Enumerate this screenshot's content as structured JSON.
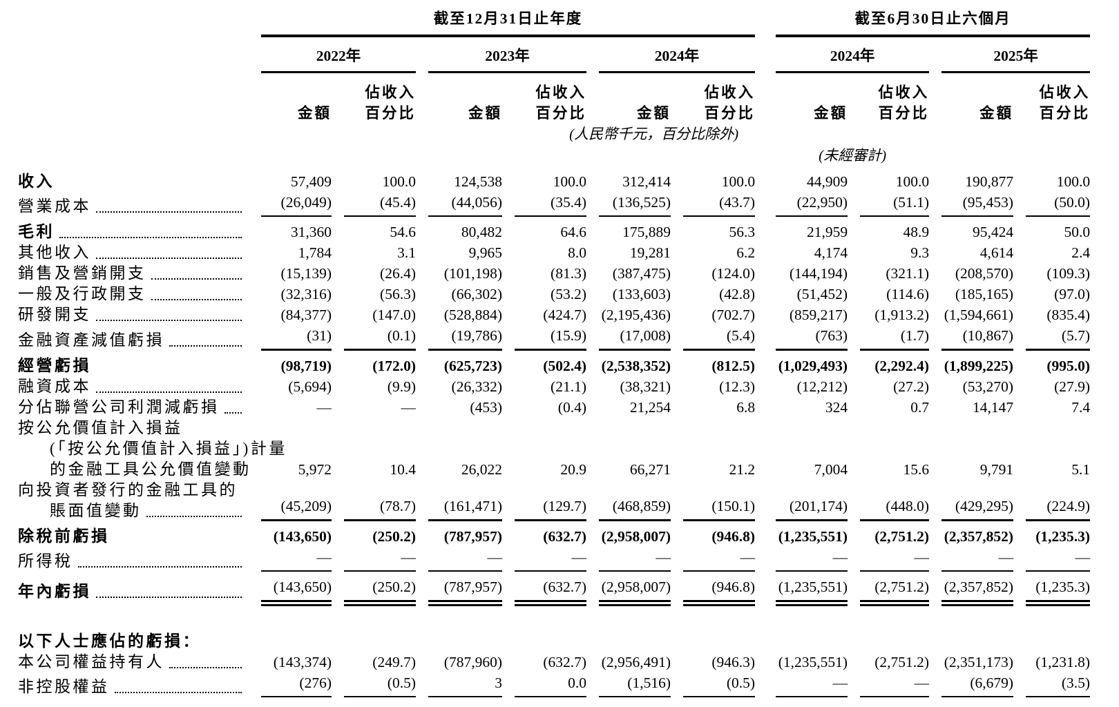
{
  "table": {
    "group_headers": [
      {
        "label": "截至12月31日止年度"
      },
      {
        "label": "截至6月30日止六個月"
      }
    ],
    "year_headers": [
      "2022年",
      "2023年",
      "2024年",
      "2024年",
      "2025年"
    ],
    "col_headers": {
      "amount": "金額",
      "pct_line1": "佔收入",
      "pct_line2": "百分比"
    },
    "unit_note": "(人民幣千元，百分比除外)",
    "unaudited_note": "(未經審計)",
    "rows": [
      {
        "label_lines": [
          {
            "text": "收入",
            "indent": 0
          }
        ],
        "bold_label": true,
        "dots": false,
        "values": [
          "57,409",
          "100.0",
          "124,538",
          "100.0",
          "312,414",
          "100.0",
          "44,909",
          "100.0",
          "190,877",
          "100.0"
        ],
        "bold_values": false,
        "rule": null,
        "first": true
      },
      {
        "label_lines": [
          {
            "text": "營業成本",
            "indent": 0
          }
        ],
        "bold_label": false,
        "dots": true,
        "values": [
          "(26,049)",
          "(45.4)",
          "(44,056)",
          "(35.4)",
          "(136,525)",
          "(43.7)",
          "(22,950)",
          "(51.1)",
          "(95,453)",
          "(50.0)"
        ],
        "bold_values": false,
        "rule": "single"
      },
      {
        "label_lines": [
          {
            "text": "毛利",
            "indent": 0
          }
        ],
        "bold_label": true,
        "dots": true,
        "values": [
          "31,360",
          "54.6",
          "80,482",
          "64.6",
          "175,889",
          "56.3",
          "21,959",
          "48.9",
          "95,424",
          "50.0"
        ],
        "bold_values": false,
        "rule": null
      },
      {
        "label_lines": [
          {
            "text": "其他收入",
            "indent": 0
          }
        ],
        "bold_label": false,
        "dots": true,
        "values": [
          "1,784",
          "3.1",
          "9,965",
          "8.0",
          "19,281",
          "6.2",
          "4,174",
          "9.3",
          "4,614",
          "2.4"
        ],
        "bold_values": false,
        "rule": null
      },
      {
        "label_lines": [
          {
            "text": "銷售及營銷開支",
            "indent": 0
          }
        ],
        "bold_label": false,
        "dots": true,
        "values": [
          "(15,139)",
          "(26.4)",
          "(101,198)",
          "(81.3)",
          "(387,475)",
          "(124.0)",
          "(144,194)",
          "(321.1)",
          "(208,570)",
          "(109.3)"
        ],
        "bold_values": false,
        "rule": null
      },
      {
        "label_lines": [
          {
            "text": "一般及行政開支",
            "indent": 0
          }
        ],
        "bold_label": false,
        "dots": true,
        "values": [
          "(32,316)",
          "(56.3)",
          "(66,302)",
          "(53.2)",
          "(133,603)",
          "(42.8)",
          "(51,452)",
          "(114.6)",
          "(185,165)",
          "(97.0)"
        ],
        "bold_values": false,
        "rule": null
      },
      {
        "label_lines": [
          {
            "text": "研發開支",
            "indent": 0
          }
        ],
        "bold_label": false,
        "dots": true,
        "values": [
          "(84,377)",
          "(147.0)",
          "(528,884)",
          "(424.7)",
          "(2,195,436)",
          "(702.7)",
          "(859,217)",
          "(1,913.2)",
          "(1,594,661)",
          "(835.4)"
        ],
        "bold_values": false,
        "rule": null
      },
      {
        "label_lines": [
          {
            "text": "金融資產減值虧損",
            "indent": 0
          }
        ],
        "bold_label": false,
        "dots": true,
        "values": [
          "(31)",
          "(0.1)",
          "(19,786)",
          "(15.9)",
          "(17,008)",
          "(5.4)",
          "(763)",
          "(1.7)",
          "(10,867)",
          "(5.7)"
        ],
        "bold_values": false,
        "rule": "single"
      },
      {
        "label_lines": [
          {
            "text": "經營虧損",
            "indent": 0
          }
        ],
        "bold_label": true,
        "dots": false,
        "values": [
          "(98,719)",
          "(172.0)",
          "(625,723)",
          "(502.4)",
          "(2,538,352)",
          "(812.5)",
          "(1,029,493)",
          "(2,292.4)",
          "(1,899,225)",
          "(995.0)"
        ],
        "bold_values": true,
        "rule": null
      },
      {
        "label_lines": [
          {
            "text": "融資成本",
            "indent": 0
          }
        ],
        "bold_label": false,
        "dots": true,
        "values": [
          "(5,694)",
          "(9.9)",
          "(26,332)",
          "(21.1)",
          "(38,321)",
          "(12.3)",
          "(12,212)",
          "(27.2)",
          "(53,270)",
          "(27.9)"
        ],
        "bold_values": false,
        "rule": null
      },
      {
        "label_lines": [
          {
            "text": "分佔聯營公司利潤減虧損",
            "indent": 0
          }
        ],
        "bold_label": false,
        "dots": true,
        "values": [
          "—",
          "—",
          "(453)",
          "(0.4)",
          "21,254",
          "6.8",
          "324",
          "0.7",
          "14,147",
          "7.4"
        ],
        "bold_values": false,
        "rule": null
      },
      {
        "label_lines": [
          {
            "text": "按公允價值計入損益",
            "indent": 0
          },
          {
            "text": "(「按公允價值計入損益」)計量",
            "indent": 1
          },
          {
            "text": "的金融工具公允價值變動",
            "indent": 1
          }
        ],
        "bold_label": false,
        "dots": true,
        "values": [
          "5,972",
          "10.4",
          "26,022",
          "20.9",
          "66,271",
          "21.2",
          "7,004",
          "15.6",
          "9,791",
          "5.1"
        ],
        "bold_values": false,
        "rule": null
      },
      {
        "label_lines": [
          {
            "text": "向投資者發行的金融工具的",
            "indent": 0
          },
          {
            "text": "賬面值變動",
            "indent": 1
          }
        ],
        "bold_label": false,
        "dots": true,
        "values": [
          "(45,209)",
          "(78.7)",
          "(161,471)",
          "(129.7)",
          "(468,859)",
          "(150.1)",
          "(201,174)",
          "(448.0)",
          "(429,295)",
          "(224.9)"
        ],
        "bold_values": false,
        "rule": "single"
      },
      {
        "label_lines": [
          {
            "text": "除稅前虧損",
            "indent": 0
          }
        ],
        "bold_label": true,
        "dots": false,
        "values": [
          "(143,650)",
          "(250.2)",
          "(787,957)",
          "(632.7)",
          "(2,958,007)",
          "(946.8)",
          "(1,235,551)",
          "(2,751.2)",
          "(2,357,852)",
          "(1,235.3)"
        ],
        "bold_values": true,
        "rule": null
      },
      {
        "label_lines": [
          {
            "text": "所得稅",
            "indent": 0
          }
        ],
        "bold_label": false,
        "dots": true,
        "values": [
          "—",
          "—",
          "—",
          "—",
          "—",
          "—",
          "—",
          "—",
          "—",
          "—"
        ],
        "bold_values": false,
        "rule": "single"
      },
      {
        "label_lines": [
          {
            "text": "年內虧損",
            "indent": 0
          }
        ],
        "bold_label": true,
        "dots": true,
        "values": [
          "(143,650)",
          "(250.2)",
          "(787,957)",
          "(632.7)",
          "(2,958,007)",
          "(946.8)",
          "(1,235,551)",
          "(2,751.2)",
          "(2,357,852)",
          "(1,235.3)"
        ],
        "bold_values": false,
        "rule": "double"
      },
      {
        "label_lines": [
          {
            "text": "以下人士應佔的虧損：",
            "indent": 0
          }
        ],
        "bold_label": true,
        "dots": false,
        "values": null,
        "bold_values": false,
        "rule": null,
        "gap_above": true
      },
      {
        "label_lines": [
          {
            "text": "本公司權益持有人",
            "indent": 0
          }
        ],
        "bold_label": false,
        "dots": true,
        "values": [
          "(143,374)",
          "(249.7)",
          "(787,960)",
          "(632.7)",
          "(2,956,491)",
          "(946.3)",
          "(1,235,551)",
          "(2,751.2)",
          "(2,351,173)",
          "(1,231.8)"
        ],
        "bold_values": false,
        "rule": null
      },
      {
        "label_lines": [
          {
            "text": "非控股權益",
            "indent": 0
          }
        ],
        "bold_label": false,
        "dots": true,
        "values": [
          "(276)",
          "(0.5)",
          "3",
          "0.0",
          "(1,516)",
          "(0.5)",
          "—",
          "—",
          "(6,679)",
          "(3.5)"
        ],
        "bold_values": false,
        "rule": "single"
      }
    ]
  }
}
